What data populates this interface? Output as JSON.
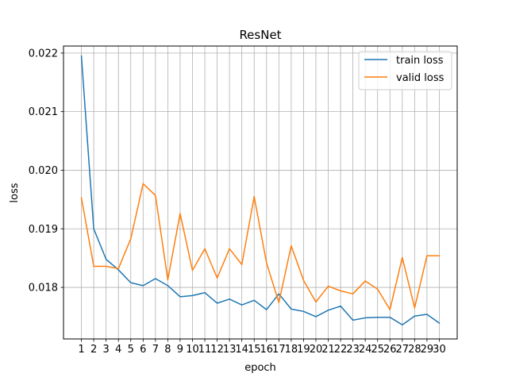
{
  "chart_data": {
    "type": "line",
    "title": "ResNet",
    "xlabel": "epoch",
    "ylabel": "loss",
    "x": [
      1,
      2,
      3,
      4,
      5,
      6,
      7,
      8,
      9,
      10,
      11,
      12,
      13,
      14,
      15,
      16,
      17,
      18,
      19,
      20,
      21,
      22,
      23,
      24,
      25,
      26,
      27,
      28,
      29,
      30
    ],
    "xlim": [
      -0.45,
      31.45
    ],
    "ylim": [
      0.01712,
      0.02212
    ],
    "yticks": [
      0.018,
      0.019,
      0.02,
      0.021,
      0.022
    ],
    "ytick_labels": [
      "0.018",
      "0.019",
      "0.020",
      "0.021",
      "0.022"
    ],
    "grid": true,
    "legend_position": "top-right",
    "series": [
      {
        "name": "train loss",
        "color": "#1f77b4",
        "values": [
          0.02195,
          0.019,
          0.01848,
          0.0183,
          0.01808,
          0.01803,
          0.01815,
          0.01803,
          0.01784,
          0.01786,
          0.01791,
          0.01773,
          0.0178,
          0.0177,
          0.01778,
          0.01762,
          0.01789,
          0.01763,
          0.01759,
          0.0175,
          0.01761,
          0.01768,
          0.01744,
          0.01748,
          0.01749,
          0.01749,
          0.01736,
          0.01751,
          0.01754,
          0.01739
        ]
      },
      {
        "name": "valid loss",
        "color": "#ff7f0e",
        "values": [
          0.01953,
          0.01836,
          0.01836,
          0.01832,
          0.01883,
          0.01977,
          0.01957,
          0.01813,
          0.01926,
          0.01829,
          0.01866,
          0.01816,
          0.01866,
          0.01839,
          0.01955,
          0.01842,
          0.01774,
          0.01871,
          0.01812,
          0.01775,
          0.01802,
          0.01794,
          0.01789,
          0.01811,
          0.01797,
          0.01762,
          0.01851,
          0.01765,
          0.01854,
          0.01854
        ]
      }
    ]
  }
}
